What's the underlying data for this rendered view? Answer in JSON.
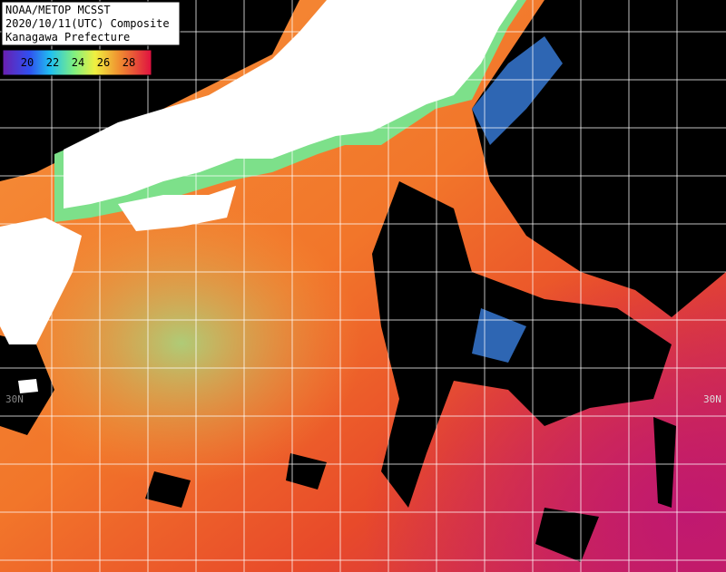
{
  "header": {
    "lines": [
      "NOAA/METOP MCSST",
      "2020/10/11(UTC) Composite",
      "Kanagawa Prefecture"
    ]
  },
  "colorbar": {
    "ticks": [
      20,
      22,
      24,
      26,
      28
    ]
  },
  "grid_labels": [
    "30N",
    "30N"
  ]
}
